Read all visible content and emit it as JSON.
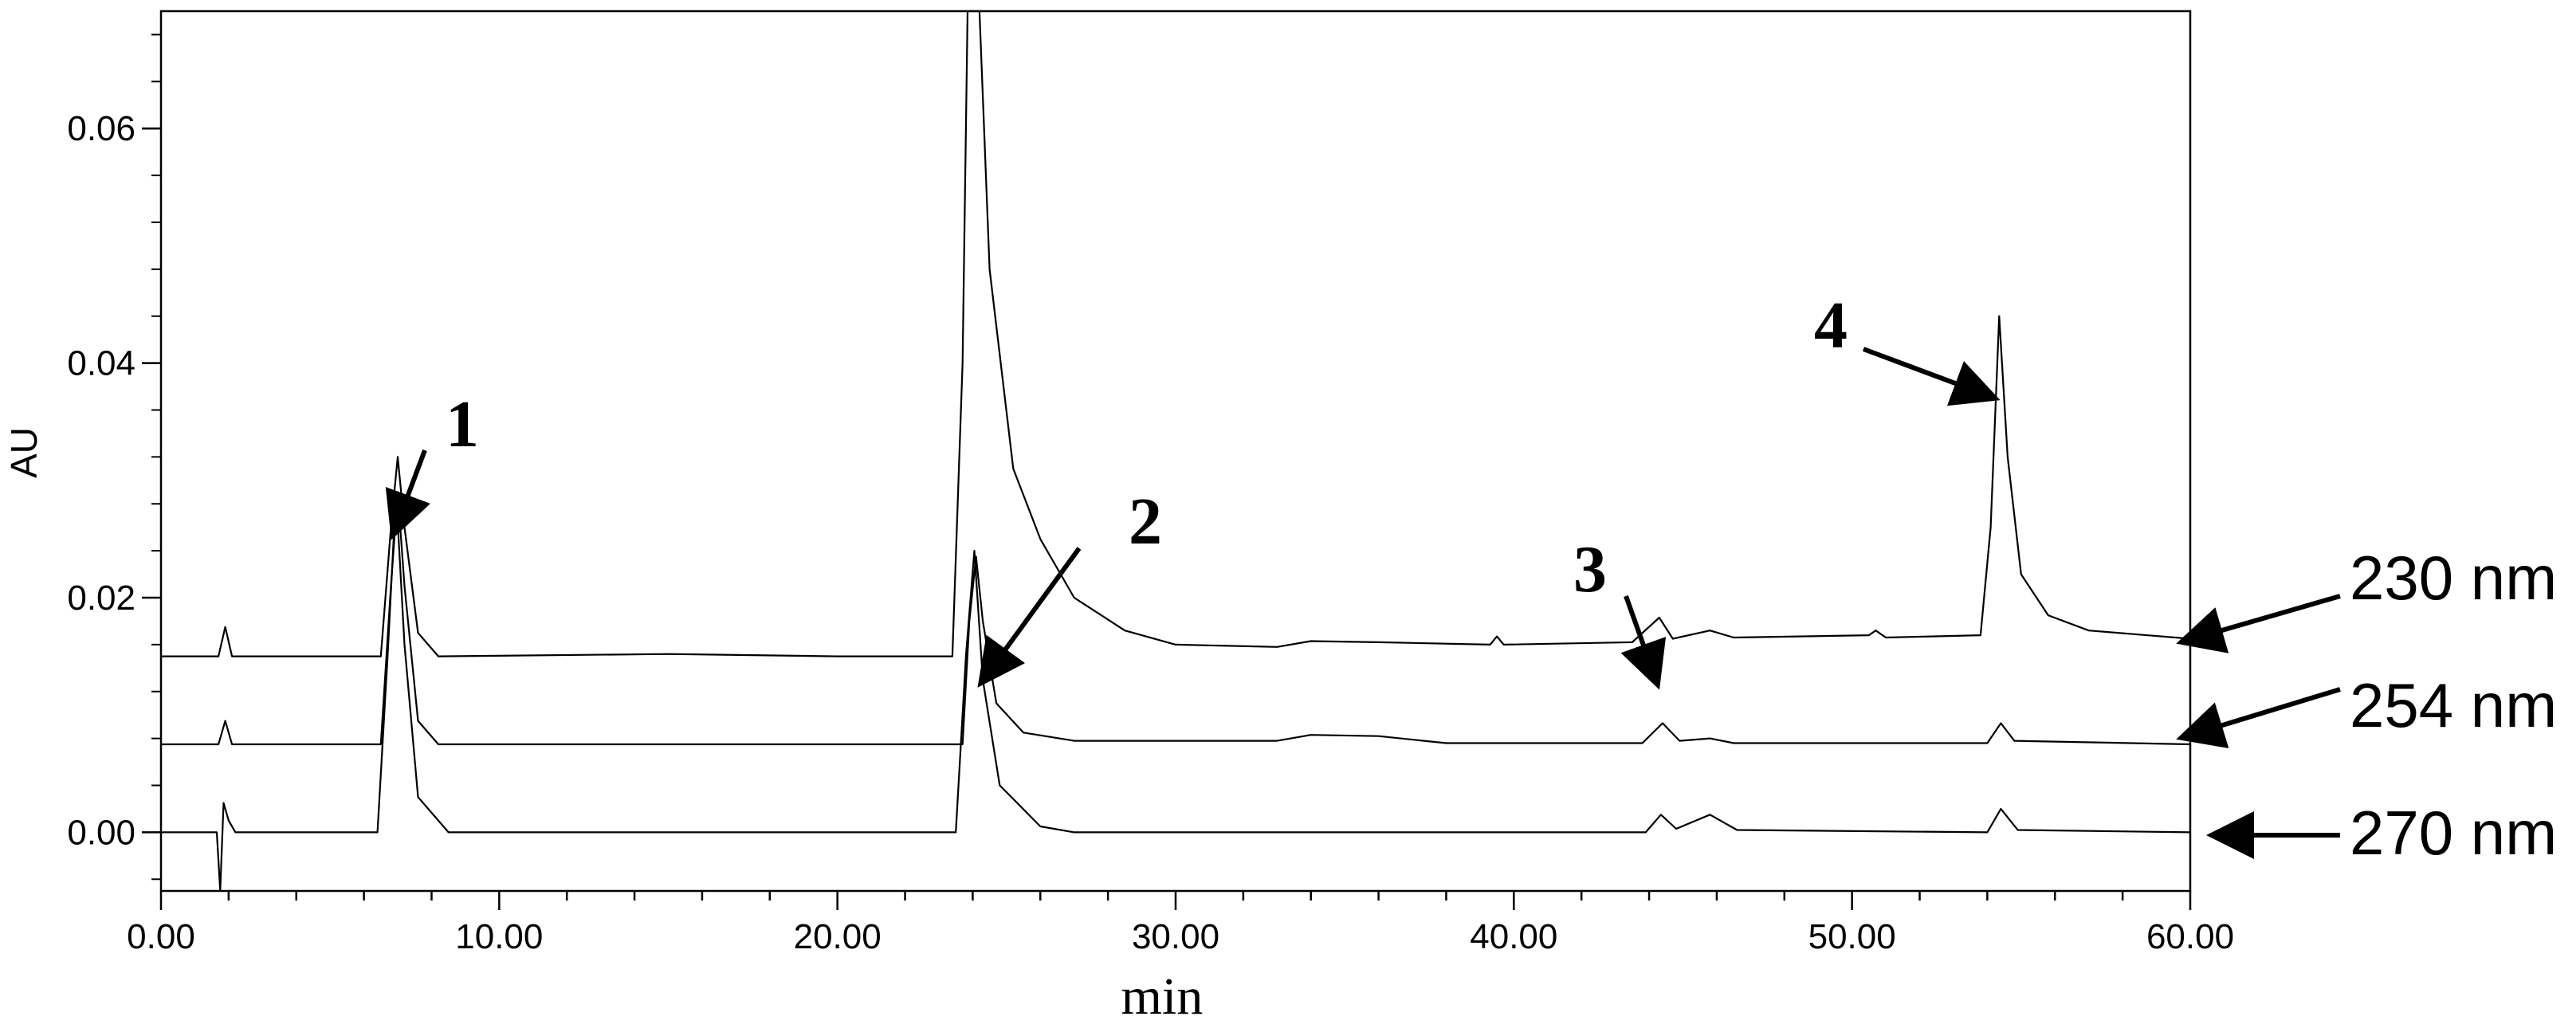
{
  "chart_data": {
    "type": "line",
    "title": "",
    "xlabel": "min",
    "ylabel": "AU",
    "xlim": [
      0,
      60
    ],
    "ylim": [
      -0.005,
      0.07
    ],
    "grid": false,
    "x_ticks": [
      "0.00",
      "10.00",
      "20.00",
      "30.00",
      "40.00",
      "50.00",
      "60.00"
    ],
    "y_ticks": [
      "0.00",
      "0.02",
      "0.04",
      "0.06"
    ],
    "x_tick_values": [
      0,
      10,
      20,
      30,
      40,
      50,
      60
    ],
    "y_tick_values": [
      0,
      0.02,
      0.04,
      0.06
    ],
    "series": [
      {
        "name": "230 nm",
        "baseline": 0.015,
        "points": [
          [
            0,
            0.015
          ],
          [
            1.7,
            0.015
          ],
          [
            1.9,
            0.0175
          ],
          [
            2.1,
            0.015
          ],
          [
            6.5,
            0.015
          ],
          [
            6.8,
            0.026
          ],
          [
            7.0,
            0.032
          ],
          [
            7.2,
            0.026
          ],
          [
            7.6,
            0.017
          ],
          [
            8.2,
            0.015
          ],
          [
            15,
            0.0152
          ],
          [
            20,
            0.015
          ],
          [
            23.4,
            0.015
          ],
          [
            23.7,
            0.04
          ],
          [
            23.85,
            0.075
          ],
          [
            24.2,
            0.075
          ],
          [
            24.5,
            0.048
          ],
          [
            25.2,
            0.031
          ],
          [
            26.0,
            0.025
          ],
          [
            27.0,
            0.02
          ],
          [
            28.5,
            0.0172
          ],
          [
            30.0,
            0.016
          ],
          [
            33.0,
            0.0158
          ],
          [
            34.0,
            0.0163
          ],
          [
            36.0,
            0.0162
          ],
          [
            39.3,
            0.016
          ],
          [
            39.5,
            0.0167
          ],
          [
            39.7,
            0.016
          ],
          [
            43.5,
            0.0162
          ],
          [
            44.3,
            0.0183
          ],
          [
            44.7,
            0.0165
          ],
          [
            45.8,
            0.0172
          ],
          [
            46.5,
            0.0166
          ],
          [
            50.5,
            0.0168
          ],
          [
            50.7,
            0.0172
          ],
          [
            51.0,
            0.0166
          ],
          [
            53.8,
            0.0168
          ],
          [
            54.1,
            0.026
          ],
          [
            54.35,
            0.044
          ],
          [
            54.6,
            0.032
          ],
          [
            55.0,
            0.022
          ],
          [
            55.8,
            0.0185
          ],
          [
            57.0,
            0.0172
          ],
          [
            60.0,
            0.0165
          ]
        ]
      },
      {
        "name": "254 nm",
        "baseline": 0.0075,
        "points": [
          [
            0,
            0.0075
          ],
          [
            1.7,
            0.0075
          ],
          [
            1.9,
            0.0095
          ],
          [
            2.1,
            0.0075
          ],
          [
            6.5,
            0.0075
          ],
          [
            6.8,
            0.021
          ],
          [
            7.0,
            0.029
          ],
          [
            7.2,
            0.021
          ],
          [
            7.6,
            0.0095
          ],
          [
            8.2,
            0.0075
          ],
          [
            20,
            0.0075
          ],
          [
            23.7,
            0.0075
          ],
          [
            23.9,
            0.018
          ],
          [
            24.1,
            0.0235
          ],
          [
            24.3,
            0.018
          ],
          [
            24.7,
            0.011
          ],
          [
            25.5,
            0.0085
          ],
          [
            27,
            0.0078
          ],
          [
            33,
            0.0078
          ],
          [
            34,
            0.0083
          ],
          [
            36,
            0.0082
          ],
          [
            38,
            0.0076
          ],
          [
            43.8,
            0.0076
          ],
          [
            44.4,
            0.0093
          ],
          [
            44.9,
            0.0078
          ],
          [
            45.8,
            0.008
          ],
          [
            46.5,
            0.0076
          ],
          [
            54.0,
            0.0076
          ],
          [
            54.4,
            0.0093
          ],
          [
            54.8,
            0.0078
          ],
          [
            60.0,
            0.0075
          ]
        ]
      },
      {
        "name": "270 nm",
        "baseline": 0.0,
        "points": [
          [
            0,
            0.0
          ],
          [
            1.65,
            0.0
          ],
          [
            1.75,
            -0.005
          ],
          [
            1.85,
            0.0025
          ],
          [
            2.0,
            0.001
          ],
          [
            2.2,
            0.0
          ],
          [
            6.4,
            0.0
          ],
          [
            6.7,
            0.015
          ],
          [
            6.95,
            0.029
          ],
          [
            7.2,
            0.016
          ],
          [
            7.6,
            0.003
          ],
          [
            8.5,
            0.0
          ],
          [
            23.5,
            0.0
          ],
          [
            23.8,
            0.015
          ],
          [
            24.05,
            0.024
          ],
          [
            24.3,
            0.013
          ],
          [
            24.8,
            0.004
          ],
          [
            26,
            0.0005
          ],
          [
            27,
            0.0
          ],
          [
            43.9,
            0.0
          ],
          [
            44.35,
            0.0015
          ],
          [
            44.8,
            0.0003
          ],
          [
            45.8,
            0.0015
          ],
          [
            46.6,
            0.0002
          ],
          [
            54.0,
            0.0
          ],
          [
            54.4,
            0.002
          ],
          [
            54.9,
            0.0002
          ],
          [
            60.0,
            0.0
          ]
        ]
      }
    ],
    "peak_labels": [
      {
        "text": "1",
        "x": 7.0,
        "y": 0.031
      },
      {
        "text": "2",
        "x": 24.1,
        "y": 0.0245
      },
      {
        "text": "3",
        "x": 44.4,
        "y": 0.0125
      },
      {
        "text": "4",
        "x": 54.3,
        "y": 0.044
      }
    ],
    "trace_labels": [
      "230 nm",
      "254 nm",
      "270 nm"
    ]
  }
}
